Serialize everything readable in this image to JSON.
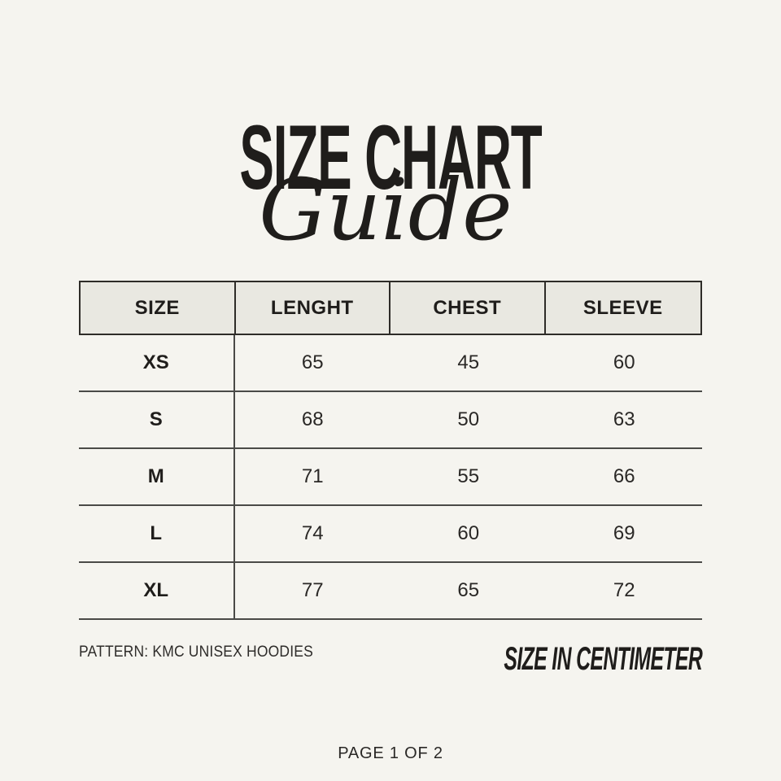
{
  "colors": {
    "background": "#F5F4EF",
    "header_fill": "#E9E8E1",
    "header_border": "#2E2C28",
    "row_line": "#4A4A47",
    "text": "#1F1D1B"
  },
  "title": {
    "main": "SIZE CHART",
    "script": "Guide"
  },
  "table": {
    "headers": [
      "SIZE",
      "LENGHT",
      "CHEST",
      "SLEEVE"
    ],
    "rows": [
      [
        "XS",
        "65",
        "45",
        "60"
      ],
      [
        "S",
        "68",
        "50",
        "63"
      ],
      [
        "M",
        "71",
        "55",
        "66"
      ],
      [
        "L",
        "74",
        "60",
        "69"
      ],
      [
        "XL",
        "77",
        "65",
        "72"
      ]
    ]
  },
  "footer": {
    "pattern": "PATTERN: KMC UNISEX HOODIES",
    "unit_label": "SIZE IN CENTIMETER",
    "page": "PAGE 1 OF 2"
  },
  "chart_data": {
    "type": "table",
    "title": "SIZE CHART Guide",
    "columns": [
      "SIZE",
      "LENGHT",
      "CHEST",
      "SLEEVE"
    ],
    "unit": "centimeter",
    "rows": [
      {
        "size": "XS",
        "lenght": 65,
        "chest": 45,
        "sleeve": 60
      },
      {
        "size": "S",
        "lenght": 68,
        "chest": 50,
        "sleeve": 63
      },
      {
        "size": "M",
        "lenght": 71,
        "chest": 55,
        "sleeve": 66
      },
      {
        "size": "L",
        "lenght": 74,
        "chest": 60,
        "sleeve": 69
      },
      {
        "size": "XL",
        "lenght": 77,
        "chest": 65,
        "sleeve": 72
      }
    ]
  }
}
